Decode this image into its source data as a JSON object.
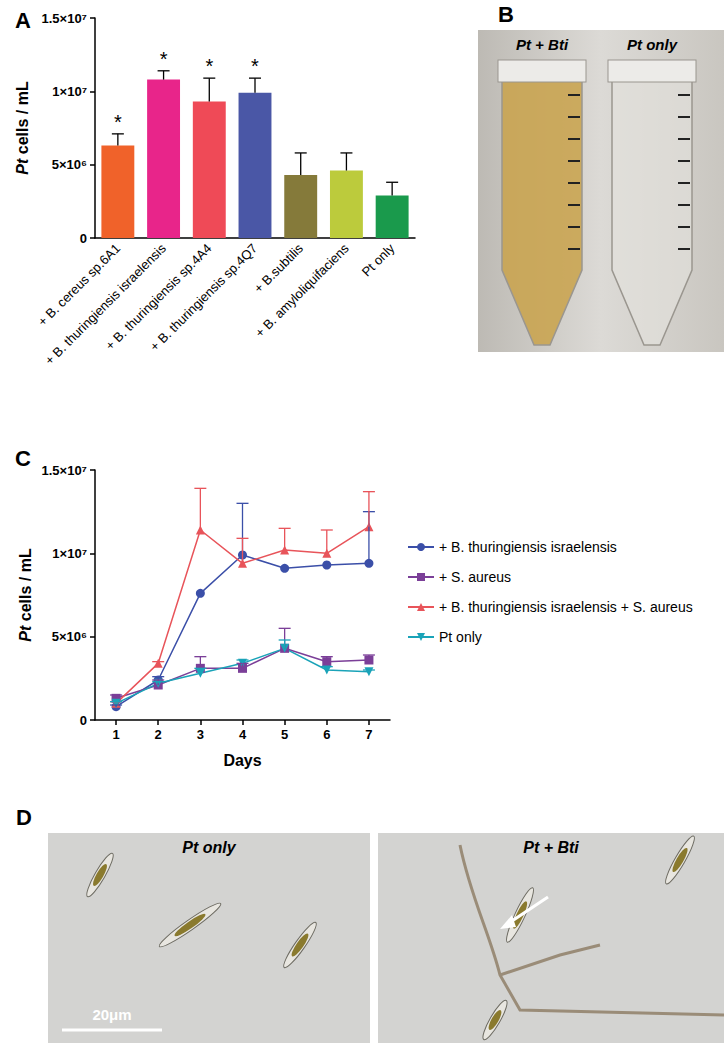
{
  "chart_data": [
    {
      "type": "bar",
      "title": "A",
      "ylabel": "Pt cells / mL",
      "categories": [
        "+ B. cereus sp.6A1",
        "+ B. thuringiensis israelensis",
        "+ B. thuringiensis sp.4A4",
        "+ B. thuringiensis sp.4Q7",
        "+ B.subtilis",
        "+ B. amyloliquifaciens",
        "Pt only"
      ],
      "values": [
        6300000,
        10800000,
        9300000,
        9900000,
        4300000,
        4600000,
        2900000
      ],
      "errors": [
        800000,
        600000,
        1600000,
        1000000,
        1500000,
        1200000,
        900000
      ],
      "annotations": [
        "*",
        "*",
        "*",
        "*",
        null,
        null,
        null
      ],
      "colors": [
        "#f0622a",
        "#e8258a",
        "#ef4a57",
        "#4a57a6",
        "#857a3a",
        "#bccb3c",
        "#1a9a4c"
      ],
      "ylim": [
        0,
        15000000
      ],
      "yticks": [
        0,
        {
          "value": 5000000,
          "label": "5×10⁶"
        },
        {
          "value": 10000000,
          "label": "1×10⁷"
        },
        {
          "value": 15000000,
          "label": "1.5×10⁷"
        }
      ],
      "grid": false
    },
    {
      "type": "line",
      "title": "C",
      "xlabel": "Days",
      "ylabel": "Pt cells / mL",
      "categories": [
        "1",
        "2",
        "3",
        "4",
        "5",
        "6",
        "7"
      ],
      "series": [
        {
          "name": "+ B. thuringiensis israelensis",
          "color": "#3b4fa8",
          "marker": "circle",
          "values": [
            800000,
            2400000,
            7600000,
            9900000,
            9100000,
            9300000,
            9400000
          ],
          "errors": [
            100000,
            200000,
            0,
            3100000,
            0,
            0,
            3100000
          ]
        },
        {
          "name": "+ S. aureus",
          "color": "#7b3f98",
          "marker": "square",
          "values": [
            1300000,
            2100000,
            3100000,
            3100000,
            4300000,
            3500000,
            3600000
          ],
          "errors": [
            200000,
            300000,
            700000,
            300000,
            1200000,
            300000,
            300000
          ]
        },
        {
          "name": "+ B. thuringiensis israelensis + S. aureus",
          "color": "#e8545a",
          "marker": "triangle",
          "values": [
            1000000,
            3400000,
            11400000,
            9400000,
            10200000,
            10000000,
            11600000
          ],
          "errors": [
            100000,
            100000,
            2500000,
            1500000,
            1300000,
            1400000,
            2100000
          ]
        },
        {
          "name": "Pt only",
          "color": "#1aa3b8",
          "marker": "triangle-down",
          "values": [
            1000000,
            2200000,
            2800000,
            3400000,
            4300000,
            3000000,
            2900000
          ],
          "errors": [
            100000,
            100000,
            300000,
            200000,
            500000,
            200000,
            100000
          ]
        }
      ],
      "ylim": [
        0,
        15000000
      ],
      "yticks": [
        0,
        {
          "value": 5000000,
          "label": "5×10⁶"
        },
        {
          "value": 10000000,
          "label": "1×10⁷"
        },
        {
          "value": 15000000,
          "label": "1.5×10⁷"
        }
      ],
      "legend": "right",
      "grid": false
    }
  ],
  "images": [
    {
      "panel": "B",
      "labels": [
        "Pt + Bti",
        "Pt only"
      ]
    },
    {
      "panel": "D",
      "labels": [
        "Pt only",
        "Pt + Bti"
      ],
      "scale_bar": "20μm"
    }
  ]
}
